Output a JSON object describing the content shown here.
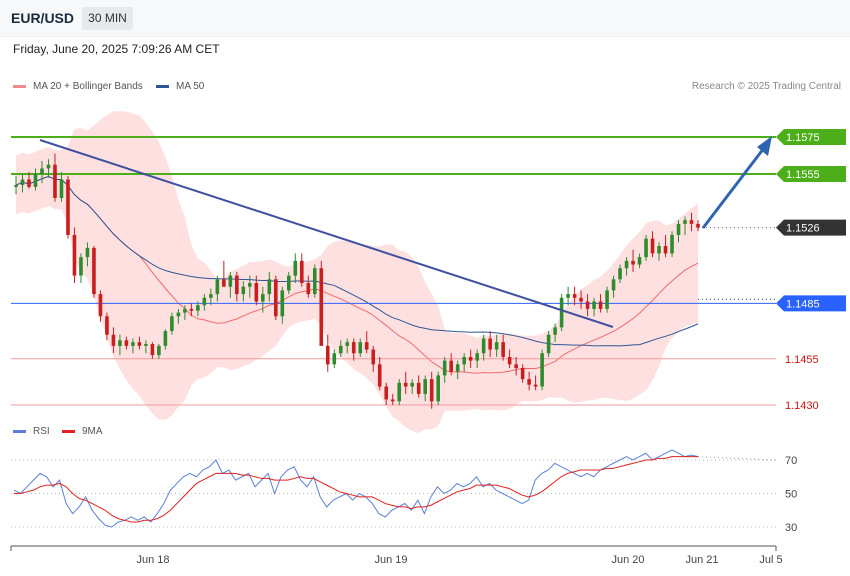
{
  "header": {
    "symbol": "EUR/USD",
    "timeframe": "30 MIN",
    "datetime": "Friday, June 20, 2025 7:09:26 AM CET",
    "credit": "Research © 2025 Trading Central"
  },
  "legend_main": [
    {
      "label": "MA 20 + Bollinger Bands",
      "color": "#f08a8a"
    },
    {
      "label": "MA 50",
      "color": "#2f5597"
    }
  ],
  "legend_rsi": [
    {
      "label": "RSI",
      "color": "#5b7fd6"
    },
    {
      "label": "9MA",
      "color": "#e02020"
    }
  ],
  "colors": {
    "bull": "#2e8b2e",
    "bear": "#c81e1e",
    "resistance": "#4caf1a",
    "support": "#f29a9a",
    "pivot": "#2962ff",
    "current": "#333333",
    "trendline": "#3f51a0",
    "band_fill": "#ffd6d6",
    "ma20": "#f06a6a",
    "ma50": "#2f5597"
  },
  "chart_data": {
    "type": "candlestick",
    "x_ticks": [
      "Jun 18",
      "Jun 19",
      "Jun 20",
      "Jun 21",
      "Jul 5"
    ],
    "price_levels": [
      {
        "value": 1.1575,
        "label": "1.1575",
        "role": "resistance"
      },
      {
        "value": 1.1555,
        "label": "1.1555",
        "role": "resistance"
      },
      {
        "value": 1.1526,
        "label": "1.1526",
        "role": "current"
      },
      {
        "value": 1.1485,
        "label": "1.1485",
        "role": "pivot"
      },
      {
        "value": 1.1455,
        "label": "1.1455",
        "role": "support"
      },
      {
        "value": 1.143,
        "label": "1.1430",
        "role": "support"
      }
    ],
    "ohlc_approx": [
      [
        1.1548,
        1.1554,
        1.1544,
        1.1549
      ],
      [
        1.1549,
        1.1555,
        1.1545,
        1.1552
      ],
      [
        1.1552,
        1.1556,
        1.1547,
        1.1548
      ],
      [
        1.1548,
        1.1558,
        1.1546,
        1.1555
      ],
      [
        1.1555,
        1.1562,
        1.155,
        1.1558
      ],
      [
        1.1558,
        1.1563,
        1.1553,
        1.156
      ],
      [
        1.156,
        1.1566,
        1.154,
        1.1542
      ],
      [
        1.1542,
        1.1556,
        1.154,
        1.1552
      ],
      [
        1.1552,
        1.1554,
        1.152,
        1.1522
      ],
      [
        1.1522,
        1.1526,
        1.1496,
        1.15
      ],
      [
        1.15,
        1.1512,
        1.1496,
        1.151
      ],
      [
        1.151,
        1.1518,
        1.1505,
        1.1515
      ],
      [
        1.1515,
        1.1516,
        1.1488,
        1.149
      ],
      [
        1.149,
        1.1492,
        1.1475,
        1.1478
      ],
      [
        1.1478,
        1.148,
        1.1465,
        1.1468
      ],
      [
        1.1468,
        1.1472,
        1.1458,
        1.1462
      ],
      [
        1.1462,
        1.1468,
        1.1457,
        1.1465
      ],
      [
        1.1465,
        1.1467,
        1.146,
        1.1462
      ],
      [
        1.1462,
        1.1466,
        1.1458,
        1.1464
      ],
      [
        1.1464,
        1.1467,
        1.146,
        1.1462
      ],
      [
        1.1462,
        1.1465,
        1.1458,
        1.1463
      ],
      [
        1.1463,
        1.1464,
        1.1455,
        1.1457
      ],
      [
        1.1457,
        1.1463,
        1.1455,
        1.1462
      ],
      [
        1.1462,
        1.1471,
        1.146,
        1.147
      ],
      [
        1.147,
        1.148,
        1.1468,
        1.1478
      ],
      [
        1.1478,
        1.1482,
        1.1474,
        1.148
      ],
      [
        1.148,
        1.1484,
        1.1476,
        1.1482
      ],
      [
        1.1482,
        1.1485,
        1.1478,
        1.1481
      ],
      [
        1.1481,
        1.1486,
        1.1478,
        1.1484
      ],
      [
        1.1484,
        1.149,
        1.1481,
        1.1488
      ],
      [
        1.1488,
        1.1493,
        1.1484,
        1.149
      ],
      [
        1.149,
        1.15,
        1.1486,
        1.1498
      ],
      [
        1.1498,
        1.1508,
        1.1494,
        1.1494
      ],
      [
        1.1494,
        1.1502,
        1.1488,
        1.15
      ],
      [
        1.15,
        1.1502,
        1.1486,
        1.149
      ],
      [
        1.149,
        1.1497,
        1.1486,
        1.1494
      ],
      [
        1.1494,
        1.15,
        1.1488,
        1.1496
      ],
      [
        1.1496,
        1.15,
        1.1484,
        1.1486
      ],
      [
        1.1486,
        1.1494,
        1.148,
        1.149
      ],
      [
        1.149,
        1.1502,
        1.1486,
        1.1498
      ],
      [
        1.1498,
        1.15,
        1.1476,
        1.1478
      ],
      [
        1.1478,
        1.1494,
        1.1474,
        1.1492
      ],
      [
        1.1492,
        1.1502,
        1.149,
        1.15
      ],
      [
        1.15,
        1.1512,
        1.1496,
        1.1508
      ],
      [
        1.1508,
        1.1512,
        1.1494,
        1.1496
      ],
      [
        1.1496,
        1.15,
        1.1488,
        1.149
      ],
      [
        1.149,
        1.1506,
        1.1488,
        1.1504
      ],
      [
        1.1504,
        1.1508,
        1.1462,
        1.1462
      ],
      [
        1.1462,
        1.1468,
        1.1448,
        1.1452
      ],
      [
        1.1452,
        1.146,
        1.145,
        1.1458
      ],
      [
        1.1458,
        1.1465,
        1.1456,
        1.1462
      ],
      [
        1.1462,
        1.1466,
        1.1458,
        1.1464
      ],
      [
        1.1464,
        1.1466,
        1.1454,
        1.1458
      ],
      [
        1.1458,
        1.1466,
        1.1456,
        1.1464
      ],
      [
        1.1464,
        1.147,
        1.1458,
        1.146
      ],
      [
        1.146,
        1.1462,
        1.1448,
        1.1452
      ],
      [
        1.1452,
        1.1456,
        1.1438,
        1.144
      ],
      [
        1.144,
        1.1442,
        1.143,
        1.1433
      ],
      [
        1.1433,
        1.1436,
        1.143,
        1.1432
      ],
      [
        1.1432,
        1.1444,
        1.143,
        1.1442
      ],
      [
        1.1442,
        1.1448,
        1.1436,
        1.144
      ],
      [
        1.144,
        1.1444,
        1.1436,
        1.1442
      ],
      [
        1.1442,
        1.1446,
        1.1434,
        1.1436
      ],
      [
        1.1436,
        1.1446,
        1.1432,
        1.1444
      ],
      [
        1.1444,
        1.1448,
        1.1428,
        1.1432
      ],
      [
        1.1432,
        1.1448,
        1.143,
        1.1446
      ],
      [
        1.1446,
        1.1456,
        1.1442,
        1.1454
      ],
      [
        1.1454,
        1.1458,
        1.1446,
        1.1448
      ],
      [
        1.1448,
        1.1454,
        1.1444,
        1.1452
      ],
      [
        1.1452,
        1.1458,
        1.1448,
        1.1456
      ],
      [
        1.1456,
        1.146,
        1.145,
        1.1454
      ],
      [
        1.1454,
        1.146,
        1.145,
        1.1458
      ],
      [
        1.1458,
        1.1468,
        1.1454,
        1.1466
      ],
      [
        1.1466,
        1.147,
        1.1456,
        1.146
      ],
      [
        1.146,
        1.1468,
        1.1456,
        1.1464
      ],
      [
        1.1464,
        1.1468,
        1.1454,
        1.1456
      ],
      [
        1.1456,
        1.146,
        1.145,
        1.1452
      ],
      [
        1.1452,
        1.1456,
        1.1446,
        1.145
      ],
      [
        1.145,
        1.1452,
        1.1442,
        1.1444
      ],
      [
        1.1444,
        1.1448,
        1.1438,
        1.1441
      ],
      [
        1.1441,
        1.1446,
        1.1438,
        1.144
      ],
      [
        1.144,
        1.146,
        1.1438,
        1.1458
      ],
      [
        1.1458,
        1.147,
        1.1456,
        1.1468
      ],
      [
        1.1468,
        1.1474,
        1.1464,
        1.1472
      ],
      [
        1.1472,
        1.149,
        1.147,
        1.1488
      ],
      [
        1.1488,
        1.1494,
        1.1484,
        1.149
      ],
      [
        1.149,
        1.1494,
        1.1484,
        1.1488
      ],
      [
        1.1488,
        1.1492,
        1.1482,
        1.1486
      ],
      [
        1.1486,
        1.149,
        1.1478,
        1.1482
      ],
      [
        1.1482,
        1.1488,
        1.1478,
        1.1486
      ],
      [
        1.1486,
        1.149,
        1.148,
        1.1482
      ],
      [
        1.1482,
        1.1494,
        1.148,
        1.1492
      ],
      [
        1.1492,
        1.15,
        1.1488,
        1.1498
      ],
      [
        1.1498,
        1.1506,
        1.1496,
        1.1504
      ],
      [
        1.1504,
        1.151,
        1.15,
        1.1508
      ],
      [
        1.1508,
        1.1514,
        1.1502,
        1.1506
      ],
      [
        1.1506,
        1.1512,
        1.1504,
        1.151
      ],
      [
        1.151,
        1.1522,
        1.1508,
        1.152
      ],
      [
        1.152,
        1.1524,
        1.151,
        1.1512
      ],
      [
        1.1512,
        1.1518,
        1.1508,
        1.1516
      ],
      [
        1.1516,
        1.1522,
        1.151,
        1.1512
      ],
      [
        1.1512,
        1.1524,
        1.151,
        1.1522
      ],
      [
        1.1522,
        1.153,
        1.1518,
        1.1528
      ],
      [
        1.1528,
        1.1532,
        1.1522,
        1.153
      ],
      [
        1.153,
        1.1534,
        1.1524,
        1.1528
      ],
      [
        1.1528,
        1.153,
        1.1524,
        1.1526
      ]
    ],
    "rsi_levels": [
      70,
      50,
      30
    ],
    "rsi_approx": [
      52,
      50,
      54,
      58,
      62,
      60,
      54,
      58,
      44,
      38,
      42,
      48,
      40,
      35,
      31,
      30,
      33,
      34,
      36,
      34,
      36,
      33,
      38,
      44,
      52,
      56,
      60,
      62,
      60,
      64,
      66,
      70,
      62,
      64,
      58,
      60,
      62,
      54,
      58,
      62,
      50,
      60,
      64,
      66,
      58,
      54,
      60,
      48,
      42,
      46,
      48,
      50,
      46,
      50,
      48,
      44,
      38,
      36,
      40,
      42,
      44,
      40,
      46,
      38,
      48,
      54,
      50,
      52,
      56,
      54,
      56,
      60,
      54,
      56,
      52,
      50,
      48,
      46,
      44,
      46,
      58,
      62,
      64,
      68,
      66,
      64,
      62,
      60,
      62,
      60,
      64,
      66,
      68,
      70,
      72,
      70,
      72,
      74,
      70,
      72,
      74,
      76,
      74,
      72,
      73,
      72
    ],
    "rsi_ma9_approx": [
      50,
      50,
      51,
      52,
      54,
      55,
      55,
      56,
      54,
      50,
      47,
      46,
      44,
      42,
      40,
      37,
      35,
      34,
      33,
      33,
      34,
      34,
      35,
      37,
      40,
      44,
      48,
      52,
      56,
      58,
      60,
      62,
      62,
      62,
      62,
      61,
      61,
      60,
      59,
      59,
      58,
      58,
      58,
      59,
      60,
      59,
      59,
      57,
      55,
      53,
      51,
      50,
      49,
      48,
      48,
      48,
      46,
      44,
      43,
      42,
      42,
      41,
      42,
      42,
      43,
      45,
      47,
      49,
      51,
      52,
      53,
      55,
      55,
      55,
      55,
      54,
      53,
      51,
      49,
      48,
      49,
      51,
      54,
      57,
      60,
      62,
      63,
      64,
      64,
      64,
      64,
      65,
      65,
      66,
      67,
      68,
      69,
      70,
      70,
      71,
      71,
      72,
      72,
      72,
      72,
      72
    ]
  }
}
